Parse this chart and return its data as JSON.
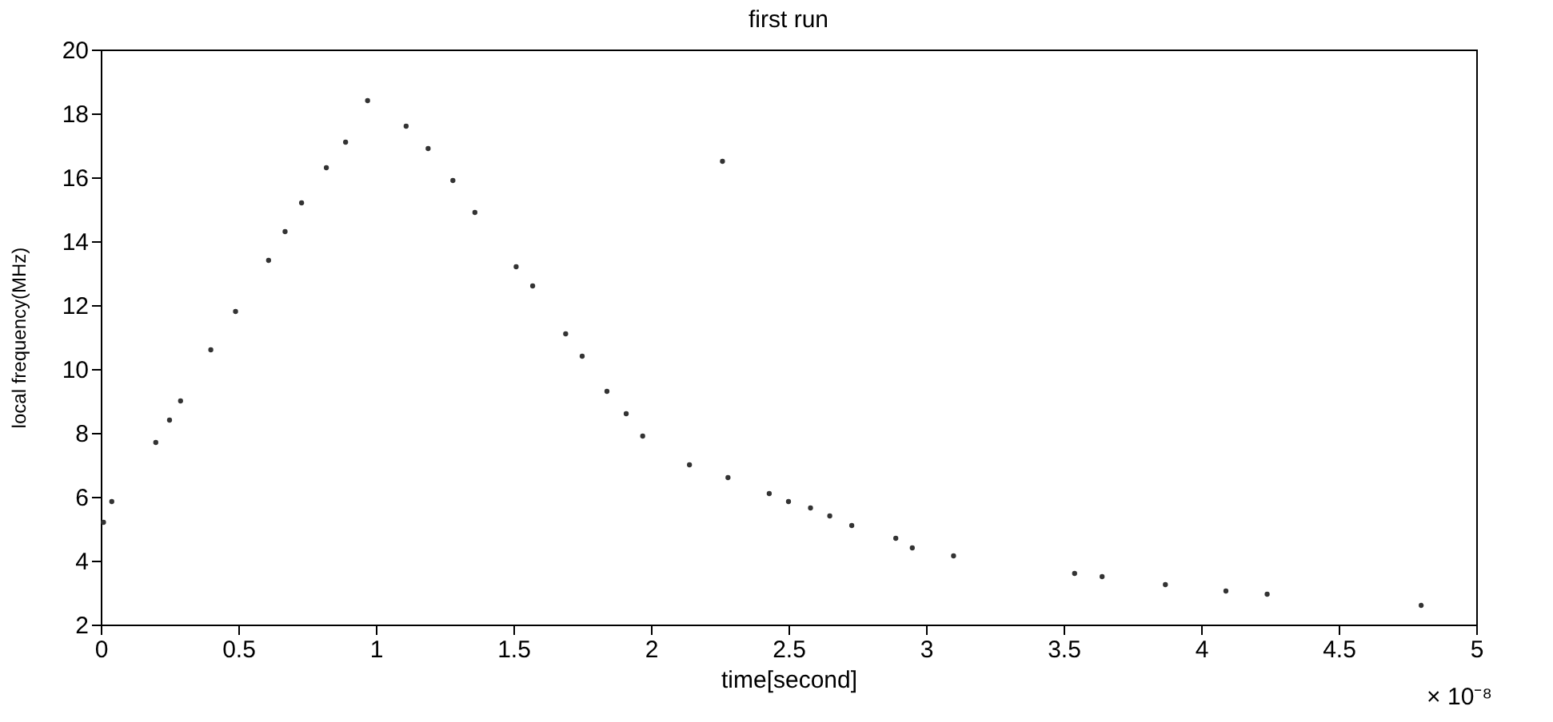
{
  "chart_data": {
    "type": "scatter",
    "title": "first run",
    "xlabel": "time[second]",
    "ylabel": "local frequency(MHz)",
    "x": [
      0.01,
      0.04,
      0.2,
      0.25,
      0.29,
      0.4,
      0.49,
      0.61,
      0.67,
      0.73,
      0.82,
      0.89,
      0.97,
      1.11,
      1.19,
      1.28,
      1.36,
      1.51,
      1.57,
      1.69,
      1.75,
      1.84,
      1.91,
      1.97,
      2.14,
      2.26,
      2.28,
      2.43,
      2.5,
      2.58,
      2.65,
      2.73,
      2.89,
      2.95,
      3.1,
      3.54,
      3.64,
      3.87,
      4.09,
      4.24,
      4.8
    ],
    "series": [
      {
        "color": "#333333",
        "values": [
          5.2,
          5.85,
          7.7,
          8.4,
          9.0,
          10.6,
          11.8,
          13.4,
          14.3,
          15.2,
          16.3,
          17.1,
          18.4,
          17.6,
          16.9,
          15.9,
          14.9,
          13.2,
          12.6,
          11.1,
          10.4,
          9.3,
          8.6,
          7.9,
          7.0,
          16.5,
          6.6,
          6.1,
          5.85,
          5.65,
          5.4,
          5.1,
          4.7,
          4.4,
          4.15,
          3.6,
          3.5,
          3.25,
          3.05,
          2.95,
          2.6
        ]
      }
    ],
    "xlim": [
      0,
      5
    ],
    "ylim": [
      2,
      20
    ],
    "xticks": [
      0,
      0.5,
      1,
      1.5,
      2,
      2.5,
      3,
      3.5,
      4,
      4.5,
      5
    ],
    "yticks": [
      2,
      4,
      6,
      8,
      10,
      12,
      14,
      16,
      18,
      20
    ],
    "marker": "circle",
    "grid": false,
    "annotations": [
      "× 10⁻⁸"
    ]
  }
}
